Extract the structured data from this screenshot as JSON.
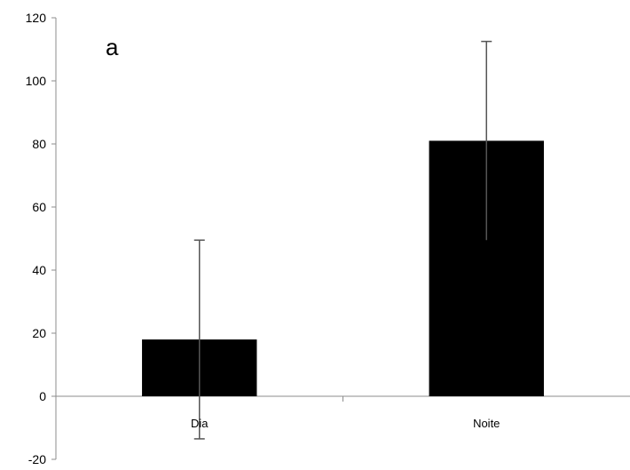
{
  "chart_data": {
    "type": "bar",
    "panel_label": "a",
    "categories": [
      "Dia",
      "Noite"
    ],
    "values": [
      18,
      81
    ],
    "error_bars": [
      31.5,
      31.5
    ],
    "ylim": [
      -20,
      120
    ],
    "yticks": [
      -20,
      0,
      20,
      40,
      60,
      80,
      100,
      120
    ],
    "title": "",
    "xlabel": "",
    "ylabel": "",
    "grid": false,
    "legend": "none",
    "bar_color": "#000000",
    "axis_color": "#8c8c8c"
  }
}
